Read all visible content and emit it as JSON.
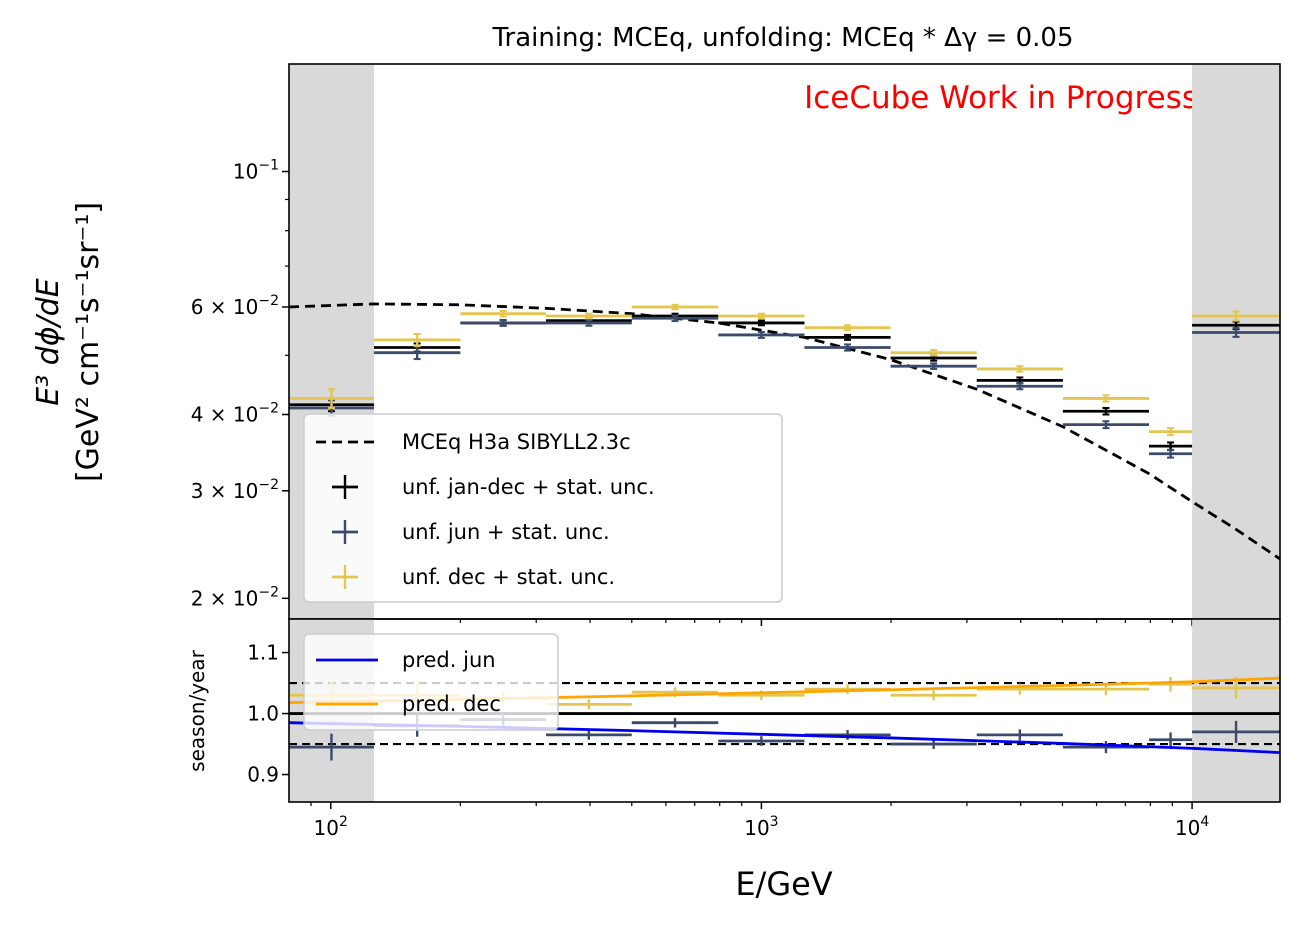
{
  "colors": {
    "jandec": "#000000",
    "jun": "#3b4a6b",
    "dec": "#e3c550",
    "model": "#000000",
    "pred_jun": "#0000ee",
    "pred_dec": "#ffa500",
    "shade": "#d9d9d9",
    "watermark": "#ff0000"
  },
  "chart_data": [
    {
      "type": "scatter",
      "title": "Training: MCEq, unfolding: MCEq * Δγ = 0.05",
      "watermark": "IceCube Work in Progress",
      "ylabel_line1": "E³ dϕ/dE",
      "ylabel_line2": "[GeV² cm⁻¹s⁻¹sr⁻¹]",
      "xscale": "log",
      "yscale": "log",
      "xlim": [
        80,
        16000
      ],
      "ylim": [
        0.0185,
        0.15
      ],
      "yticks": [
        {
          "value": 0.1,
          "mant": "10",
          "exp": "−1"
        },
        {
          "value": 0.06,
          "mant": "6 × 10",
          "exp": "−2"
        },
        {
          "value": 0.04,
          "mant": "4 × 10",
          "exp": "−2"
        },
        {
          "value": 0.03,
          "mant": "3 × 10",
          "exp": "−2"
        },
        {
          "value": 0.02,
          "mant": "2 × 10",
          "exp": "−2"
        }
      ],
      "shaded_regions": [
        [
          80,
          126
        ],
        [
          10000,
          16000
        ]
      ],
      "bin_edges": [
        80,
        126,
        200,
        316,
        500,
        794,
        1259,
        1995,
        3162,
        5012,
        7943,
        10000,
        16000
      ],
      "series": [
        {
          "name": "unf. jan-dec + stat. unc.",
          "key": "jandec",
          "values": [
            0.0415,
            0.0515,
            0.0565,
            0.057,
            0.058,
            0.0565,
            0.0535,
            0.0495,
            0.0455,
            0.0405,
            0.0355,
            0.056
          ],
          "err": [
            0.001,
            0.0008,
            0.0006,
            0.0005,
            0.0005,
            0.0005,
            0.0005,
            0.0005,
            0.0005,
            0.0005,
            0.0005,
            0.0008
          ]
        },
        {
          "name": "unf. jun + stat. unc.",
          "key": "jun",
          "values": [
            0.041,
            0.0505,
            0.0565,
            0.0565,
            0.0575,
            0.054,
            0.0515,
            0.048,
            0.0445,
            0.0385,
            0.0345,
            0.0545
          ],
          "err": [
            0.0012,
            0.0012,
            0.0006,
            0.0006,
            0.0006,
            0.0006,
            0.0006,
            0.0005,
            0.0005,
            0.0005,
            0.0005,
            0.0009
          ]
        },
        {
          "name": "unf. dec + stat. unc.",
          "key": "dec",
          "values": [
            0.0425,
            0.053,
            0.0585,
            0.058,
            0.06,
            0.058,
            0.0555,
            0.0505,
            0.0475,
            0.0425,
            0.0375,
            0.058
          ],
          "err": [
            0.0015,
            0.0012,
            0.0006,
            0.0005,
            0.0005,
            0.0005,
            0.0005,
            0.0005,
            0.0005,
            0.0005,
            0.0005,
            0.001
          ]
        }
      ],
      "model": {
        "name": "MCEq H3a SIBYLL2.3c",
        "x": [
          80,
          126,
          200,
          316,
          500,
          794,
          1259,
          1995,
          3162,
          5012,
          7943,
          10000,
          12589,
          16000
        ],
        "y": [
          0.06,
          0.0607,
          0.0605,
          0.0597,
          0.0585,
          0.0565,
          0.0535,
          0.0492,
          0.044,
          0.0382,
          0.032,
          0.0288,
          0.026,
          0.0232
        ]
      }
    },
    {
      "type": "line",
      "ylabel": "season/year",
      "xlabel": "E/GeV",
      "xscale": "log",
      "xlim": [
        80,
        16000
      ],
      "ylim": [
        0.855,
        1.155
      ],
      "yticks": [
        "1.1",
        "1.0",
        "0.9"
      ],
      "ytick_values": [
        1.1,
        1.0,
        0.9
      ],
      "xticks": [
        {
          "value": 100,
          "mant": "10",
          "exp": "2"
        },
        {
          "value": 1000,
          "mant": "10",
          "exp": "3"
        },
        {
          "value": 10000,
          "mant": "10",
          "exp": "4"
        }
      ],
      "reference_lines": {
        "solid": 1.0,
        "dashed": [
          1.05,
          0.95
        ]
      },
      "shaded_regions": [
        [
          80,
          126
        ],
        [
          10000,
          16000
        ]
      ],
      "bin_edges": [
        80,
        126,
        200,
        316,
        500,
        794,
        1259,
        1995,
        3162,
        5012,
        7943,
        10000,
        16000
      ],
      "ratio_series": [
        {
          "key": "jun",
          "values": [
            0.945,
            0.98,
            0.99,
            0.965,
            0.985,
            0.955,
            0.965,
            0.95,
            0.965,
            0.945,
            0.957,
            0.97
          ],
          "err": [
            0.022,
            0.018,
            0.01,
            0.008,
            0.008,
            0.008,
            0.008,
            0.008,
            0.009,
            0.01,
            0.012,
            0.018
          ]
        },
        {
          "key": "dec",
          "values": [
            1.03,
            1.03,
            1.025,
            1.015,
            1.035,
            1.03,
            1.04,
            1.03,
            1.04,
            1.04,
            1.048,
            1.042
          ],
          "err": [
            0.022,
            0.018,
            0.01,
            0.008,
            0.008,
            0.008,
            0.008,
            0.008,
            0.009,
            0.01,
            0.012,
            0.018
          ]
        }
      ],
      "predictions": [
        {
          "name": "pred. jun",
          "key": "pred_jun",
          "x": [
            80,
            200,
            500,
            1000,
            2000,
            5000,
            10000,
            16000
          ],
          "y": [
            0.985,
            0.979,
            0.972,
            0.966,
            0.96,
            0.951,
            0.943,
            0.936
          ]
        },
        {
          "name": "pred. dec",
          "key": "pred_dec",
          "x": [
            80,
            200,
            500,
            1000,
            2000,
            5000,
            10000,
            16000
          ],
          "y": [
            1.018,
            1.023,
            1.029,
            1.034,
            1.039,
            1.046,
            1.052,
            1.058
          ]
        }
      ]
    }
  ]
}
